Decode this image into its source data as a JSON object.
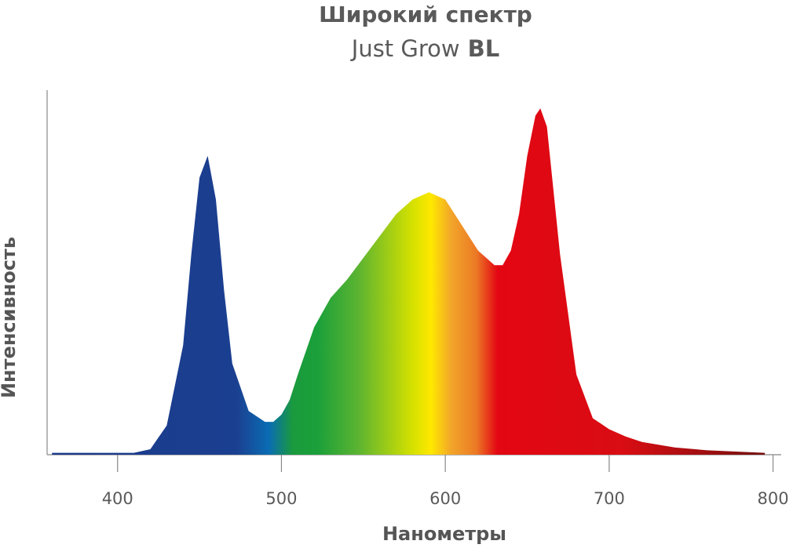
{
  "chart_data": {
    "type": "area",
    "title": "Широкий спектр",
    "subtitle": "Just Grow",
    "subtitle_emphasis": "BL",
    "x_label": "Нанометры",
    "y_label": "Интенсивность",
    "x": [
      360,
      400,
      410,
      420,
      430,
      440,
      445,
      450,
      455,
      460,
      465,
      470,
      480,
      490,
      495,
      500,
      505,
      510,
      520,
      530,
      540,
      550,
      560,
      570,
      580,
      590,
      600,
      610,
      620,
      630,
      635,
      640,
      645,
      650,
      655,
      658,
      662,
      670,
      680,
      690,
      700,
      710,
      720,
      740,
      760,
      780,
      795
    ],
    "values": [
      0.5,
      0.5,
      0.5,
      1.5,
      8,
      30,
      55,
      76,
      82,
      70,
      45,
      25,
      12,
      9,
      9,
      11,
      15,
      22,
      35,
      43,
      48,
      54,
      60,
      66,
      70,
      72,
      70,
      63,
      56,
      52,
      52,
      56,
      66,
      82,
      93,
      95,
      90,
      55,
      22,
      10,
      7,
      5,
      3.5,
      2,
      1.2,
      0.8,
      0.5
    ],
    "xlim": [
      357,
      805
    ],
    "ylim": [
      0,
      100
    ],
    "xticks": [
      400,
      500,
      600,
      700,
      800
    ],
    "grid": false
  }
}
